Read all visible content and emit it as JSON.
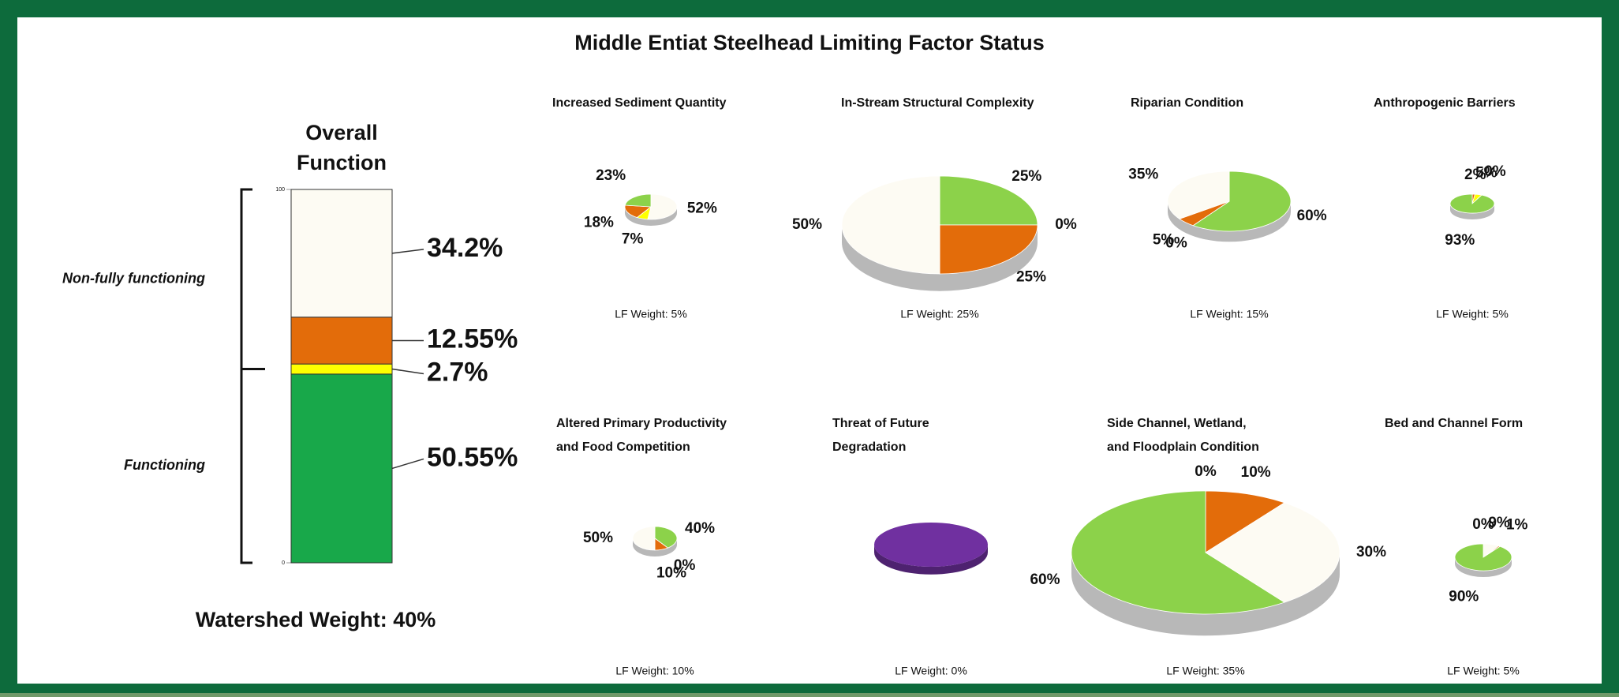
{
  "title": "Middle Entiat Steelhead Limiting Factor Status",
  "chart_data": [
    {
      "type": "stacked_bar",
      "title": [
        "Overall",
        "Function"
      ],
      "values": [
        50.55,
        2.7,
        12.55,
        34.2
      ],
      "value_labels": [
        "50.55%",
        "2.7%",
        "12.55%",
        "34.2%"
      ],
      "colors": [
        "#18a84a",
        "#ffff00",
        "#e36c0a",
        "#fdfbf3"
      ],
      "ylim": [
        0,
        100
      ],
      "yticks": [
        0,
        100
      ],
      "annotations": [
        "Functioning",
        "Non-fully functioning"
      ],
      "footer": "Watershed Weight:  40%"
    },
    {
      "type": "pie",
      "title": [
        "Increased Sediment Quantity"
      ],
      "values": [
        52,
        7,
        18,
        23
      ],
      "value_labels": [
        "52%",
        "7%",
        "18%",
        "23%"
      ],
      "colors": [
        "#fdfbf3",
        "#ffff00",
        "#e36c0a",
        "#8cd24a"
      ],
      "footer": "LF Weight:  5%"
    },
    {
      "type": "pie",
      "title": [
        "In-Stream Structural Complexity"
      ],
      "values": [
        25,
        0,
        25,
        50
      ],
      "value_labels": [
        "25%",
        "0%",
        "25%",
        "50%"
      ],
      "colors": [
        "#8cd24a",
        "#ffff00",
        "#e36c0a",
        "#fdfbf3"
      ],
      "footer": "LF Weight:  25%"
    },
    {
      "type": "pie",
      "title": [
        "Riparian Condition"
      ],
      "values": [
        60,
        0,
        5,
        35
      ],
      "value_labels": [
        "60%",
        "0%",
        "5%",
        "35%"
      ],
      "colors": [
        "#8cd24a",
        "#ffff00",
        "#e36c0a",
        "#fdfbf3"
      ],
      "footer": "LF Weight:  15%"
    },
    {
      "type": "pie",
      "title": [
        "Anthropogenic Barriers"
      ],
      "values": [
        2,
        5,
        0,
        93
      ],
      "value_labels": [
        "2%",
        "5%",
        "0%",
        "93%"
      ],
      "colors": [
        "#e36c0a",
        "#ffff00",
        "#fdfbf3",
        "#8cd24a"
      ],
      "footer": "LF Weight:  5%"
    },
    {
      "type": "pie",
      "title": [
        "Altered Primary Productivity",
        "and Food Competition"
      ],
      "values": [
        40,
        0,
        10,
        50
      ],
      "value_labels": [
        "40%",
        "0%",
        "10%",
        "50%"
      ],
      "colors": [
        "#8cd24a",
        "#ffff00",
        "#e36c0a",
        "#fdfbf3"
      ],
      "footer": "LF Weight:  10%"
    },
    {
      "type": "pie",
      "title": [
        "Threat of Future",
        "Degradation"
      ],
      "values": [
        100
      ],
      "colors": [
        "#7030a0"
      ],
      "footer": "LF Weight:  0%"
    },
    {
      "type": "pie",
      "title": [
        "Side Channel, Wetland,",
        "and Floodplain Condition"
      ],
      "values": [
        0,
        10,
        30,
        60
      ],
      "value_labels": [
        "0%",
        "10%",
        "30%",
        "60%"
      ],
      "colors": [
        "#ffff00",
        "#e36c0a",
        "#fdfbf3",
        "#8cd24a"
      ],
      "footer": "LF Weight:  35%"
    },
    {
      "type": "pie",
      "title": [
        "Bed and Channel Form"
      ],
      "values": [
        0,
        9,
        1,
        90
      ],
      "value_labels": [
        "0%",
        "9%",
        "1%",
        "90%"
      ],
      "colors": [
        "#ffff00",
        "#fdfbf3",
        "#e36c0a",
        "#8cd24a"
      ],
      "footer": "LF Weight:  5%"
    }
  ]
}
